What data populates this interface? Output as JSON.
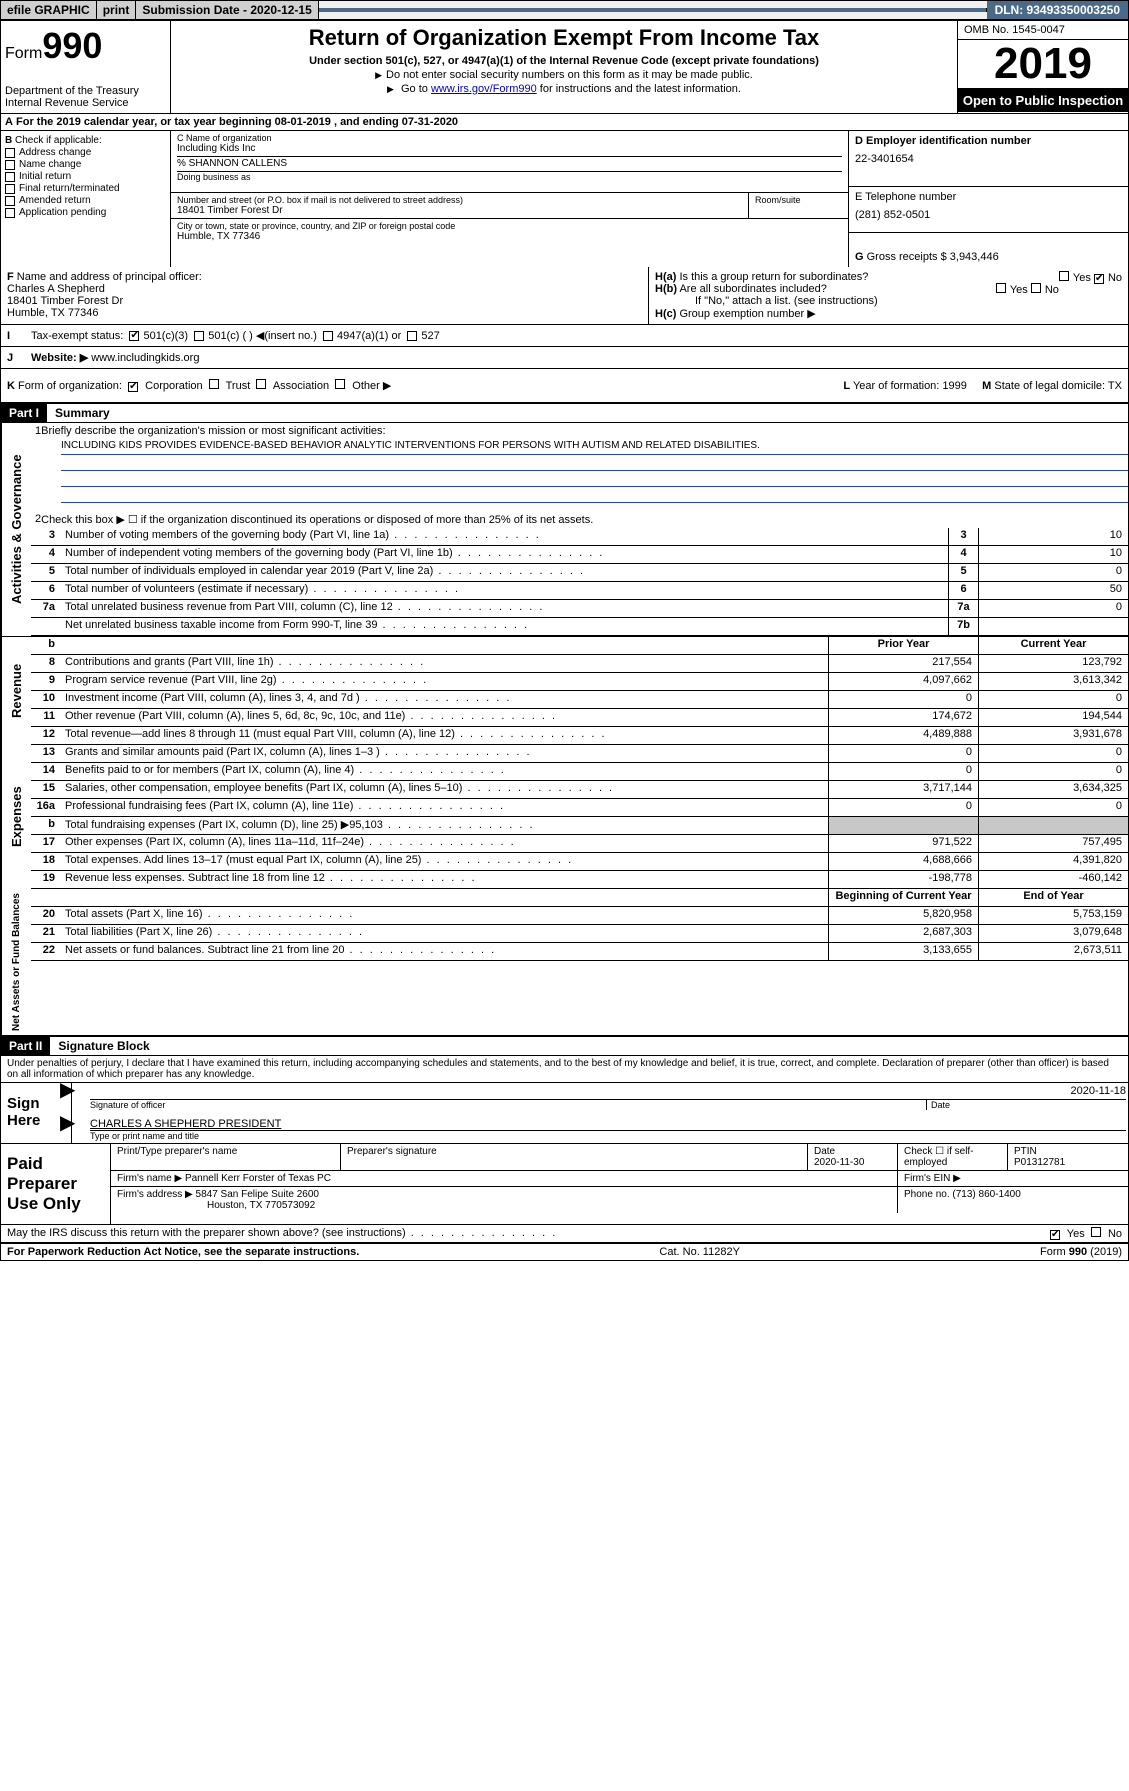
{
  "topbar": {
    "efile": "efile GRAPHIC",
    "print": "print",
    "sub_label": "Submission Date - 2020-12-15",
    "dln": "DLN: 93493350003250"
  },
  "header": {
    "form_prefix": "Form",
    "form_num": "990",
    "dept": "Department of the Treasury",
    "irs": "Internal Revenue Service",
    "title": "Return of Organization Exempt From Income Tax",
    "sub1": "Under section 501(c), 527, or 4947(a)(1) of the Internal Revenue Code (except private foundations)",
    "sub2": "Do not enter social security numbers on this form as it may be made public.",
    "sub3_pre": "Go to ",
    "sub3_link": "www.irs.gov/Form990",
    "sub3_post": " for instructions and the latest information.",
    "omb": "OMB No. 1545-0047",
    "year": "2019",
    "open": "Open to Public Inspection"
  },
  "lineA": {
    "prefix": "A",
    "text": "For the 2019 calendar year, or tax year beginning 08-01-2019",
    "text2": ", and ending 07-31-2020"
  },
  "blockB": {
    "label": "B",
    "apply": "Check if applicable:",
    "items": [
      "Address change",
      "Name change",
      "Initial return",
      "Final return/terminated",
      "Amended return",
      "Application pending"
    ],
    "c_label": "C Name of organization",
    "c_name": "Including Kids Inc",
    "c_care": "% SHANNON CALLENS",
    "dba_label": "Doing business as",
    "addr_label": "Number and street (or P.O. box if mail is not delivered to street address)",
    "room_label": "Room/suite",
    "addr": "18401 Timber Forest Dr",
    "city_label": "City or town, state or province, country, and ZIP or foreign postal code",
    "city": "Humble, TX  77346",
    "d_label": "D Employer identification number",
    "d_val": "22-3401654",
    "e_label": "E Telephone number",
    "e_val": "(281) 852-0501",
    "g_label": "G",
    "g_text": "Gross receipts $ 3,943,446"
  },
  "blockF": {
    "f_label": "F",
    "f_text": "Name and address of principal officer:",
    "f_name": "Charles A Shepherd",
    "f_addr1": "18401 Timber Forest Dr",
    "f_addr2": "Humble, TX  77346",
    "h_a": "H(a)",
    "h_a_text": "Is this a group return for subordinates?",
    "h_b": "H(b)",
    "h_b_text": "Are all subordinates included?",
    "h_note": "If \"No,\" attach a list. (see instructions)",
    "h_c": "H(c)",
    "h_c_text": "Group exemption number ▶",
    "yes": "Yes",
    "no": "No"
  },
  "status": {
    "i_label": "I",
    "text": "Tax-exempt status:",
    "opts": [
      "501(c)(3)",
      "501(c) (  ) ◀(insert no.)",
      "4947(a)(1) or",
      "527"
    ]
  },
  "website": {
    "j_label": "J",
    "label": "Website: ▶",
    "url": "www.includingkids.org"
  },
  "korg": {
    "k_label": "K",
    "text": "Form of organization:",
    "opts": [
      "Corporation",
      "Trust",
      "Association",
      "Other ▶"
    ],
    "l_label": "L",
    "l_text": "Year of formation: 1999",
    "m_label": "M",
    "m_text": "State of legal domicile: TX"
  },
  "part1": {
    "part": "Part I",
    "title": "Summary",
    "q1_num": "1",
    "q1": "Briefly describe the organization's mission or most significant activities:",
    "mission": "INCLUDING KIDS PROVIDES EVIDENCE-BASED BEHAVIOR ANALYTIC INTERVENTIONS FOR PERSONS WITH AUTISM AND RELATED DISABILITIES.",
    "q2_num": "2",
    "q2": "Check this box ▶ ☐  if the organization discontinued its operations or disposed of more than 25% of its net assets.",
    "side_gov": "Activities & Governance",
    "side_rev": "Revenue",
    "side_exp": "Expenses",
    "side_net": "Net Assets or Fund Balances",
    "hdr_prior": "Prior Year",
    "hdr_curr": "Current Year",
    "hdr_beg": "Beginning of Current Year",
    "hdr_end": "End of Year",
    "rows_gov": [
      {
        "n": "3",
        "d": "Number of voting members of the governing body (Part VI, line 1a)",
        "b": "3",
        "v": "10"
      },
      {
        "n": "4",
        "d": "Number of independent voting members of the governing body (Part VI, line 1b)",
        "b": "4",
        "v": "10"
      },
      {
        "n": "5",
        "d": "Total number of individuals employed in calendar year 2019 (Part V, line 2a)",
        "b": "5",
        "v": "0"
      },
      {
        "n": "6",
        "d": "Total number of volunteers (estimate if necessary)",
        "b": "6",
        "v": "50"
      },
      {
        "n": "7a",
        "d": "Total unrelated business revenue from Part VIII, column (C), line 12",
        "b": "7a",
        "v": "0"
      },
      {
        "n": "",
        "d": "Net unrelated business taxable income from Form 990-T, line 39",
        "b": "7b",
        "v": ""
      }
    ],
    "rows_rev": [
      {
        "n": "8",
        "d": "Contributions and grants (Part VIII, line 1h)",
        "p": "217,554",
        "c": "123,792"
      },
      {
        "n": "9",
        "d": "Program service revenue (Part VIII, line 2g)",
        "p": "4,097,662",
        "c": "3,613,342"
      },
      {
        "n": "10",
        "d": "Investment income (Part VIII, column (A), lines 3, 4, and 7d )",
        "p": "0",
        "c": "0"
      },
      {
        "n": "11",
        "d": "Other revenue (Part VIII, column (A), lines 5, 6d, 8c, 9c, 10c, and 11e)",
        "p": "174,672",
        "c": "194,544"
      },
      {
        "n": "12",
        "d": "Total revenue—add lines 8 through 11 (must equal Part VIII, column (A), line 12)",
        "p": "4,489,888",
        "c": "3,931,678"
      }
    ],
    "rows_exp": [
      {
        "n": "13",
        "d": "Grants and similar amounts paid (Part IX, column (A), lines 1–3 )",
        "p": "0",
        "c": "0"
      },
      {
        "n": "14",
        "d": "Benefits paid to or for members (Part IX, column (A), line 4)",
        "p": "0",
        "c": "0"
      },
      {
        "n": "15",
        "d": "Salaries, other compensation, employee benefits (Part IX, column (A), lines 5–10)",
        "p": "3,717,144",
        "c": "3,634,325"
      },
      {
        "n": "16a",
        "d": "Professional fundraising fees (Part IX, column (A), line 11e)",
        "p": "0",
        "c": "0"
      },
      {
        "n": "b",
        "d": "Total fundraising expenses (Part IX, column (D), line 25) ▶95,103",
        "p": "",
        "c": "",
        "shade": true
      },
      {
        "n": "17",
        "d": "Other expenses (Part IX, column (A), lines 11a–11d, 11f–24e)",
        "p": "971,522",
        "c": "757,495"
      },
      {
        "n": "18",
        "d": "Total expenses. Add lines 13–17 (must equal Part IX, column (A), line 25)",
        "p": "4,688,666",
        "c": "4,391,820"
      },
      {
        "n": "19",
        "d": "Revenue less expenses. Subtract line 18 from line 12",
        "p": "-198,778",
        "c": "-460,142"
      }
    ],
    "rows_net": [
      {
        "n": "20",
        "d": "Total assets (Part X, line 16)",
        "p": "5,820,958",
        "c": "5,753,159"
      },
      {
        "n": "21",
        "d": "Total liabilities (Part X, line 26)",
        "p": "2,687,303",
        "c": "3,079,648"
      },
      {
        "n": "22",
        "d": "Net assets or fund balances. Subtract line 21 from line 20",
        "p": "3,133,655",
        "c": "2,673,511"
      }
    ]
  },
  "part2": {
    "part": "Part II",
    "title": "Signature Block",
    "decl": "Under penalties of perjury, I declare that I have examined this return, including accompanying schedules and statements, and to the best of my knowledge and belief, it is true, correct, and complete. Declaration of preparer (other than officer) is based on all information of which preparer has any knowledge.",
    "sign": "Sign Here",
    "sig_officer": "Signature of officer",
    "sig_date": "2020-11-18",
    "date_label": "Date",
    "officer_name": "CHARLES A SHEPHERD  PRESIDENT",
    "type_label": "Type or print name and title",
    "paid": "Paid Preparer Use Only",
    "p_name_label": "Print/Type preparer's name",
    "p_sig_label": "Preparer's signature",
    "p_date_label": "Date",
    "p_date": "2020-11-30",
    "p_check": "Check ☐ if self-employed",
    "ptin_label": "PTIN",
    "ptin": "P01312781",
    "firm_name_label": "Firm's name    ▶",
    "firm_name": "Pannell Kerr Forster of Texas PC",
    "ein_label": "Firm's EIN ▶",
    "firm_addr_label": "Firm's address ▶",
    "firm_addr1": "5847 San Felipe Suite 2600",
    "firm_addr2": "Houston, TX  770573092",
    "phone_label": "Phone no.",
    "phone": "(713) 860-1400",
    "discuss": "May the IRS discuss this return with the preparer shown above? (see instructions)",
    "yes": "Yes",
    "no": "No"
  },
  "footer": {
    "pra": "For Paperwork Reduction Act Notice, see the separate instructions.",
    "cat": "Cat. No. 11282Y",
    "form": "Form 990 (2019)"
  }
}
